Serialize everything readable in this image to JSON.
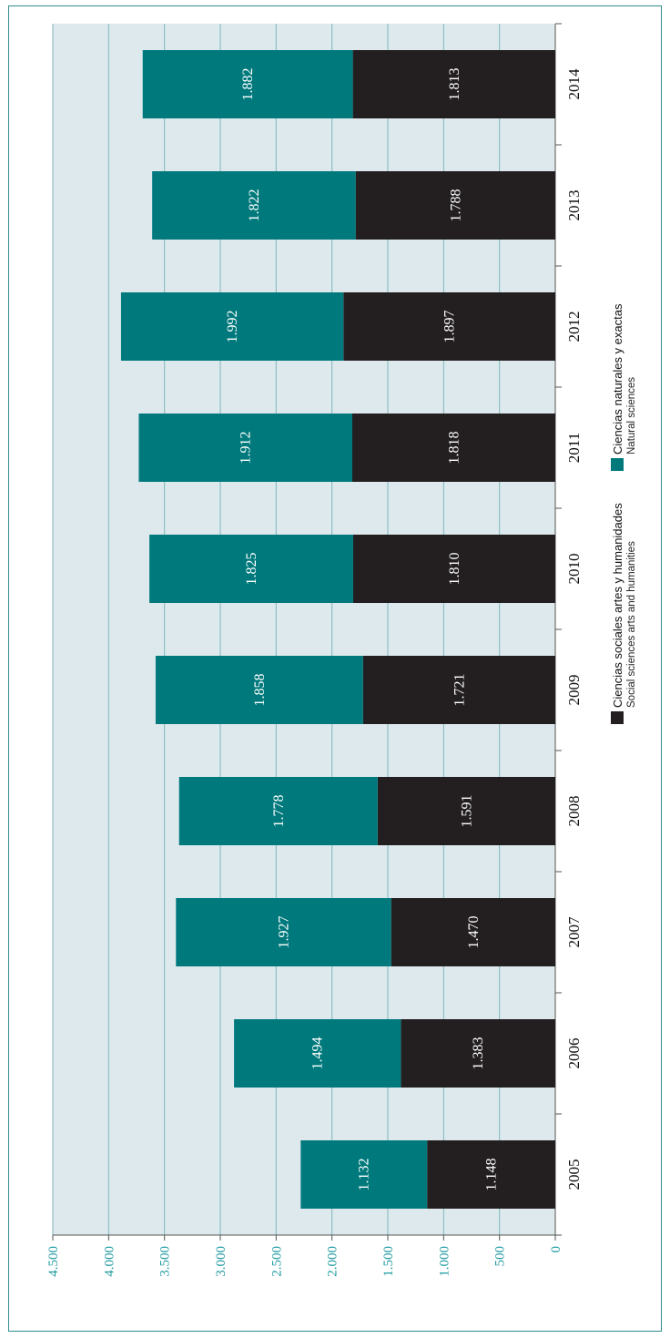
{
  "chart_data": {
    "type": "bar",
    "stacked": true,
    "orientation": "horizontal",
    "categories": [
      "2005",
      "2006",
      "2007",
      "2008",
      "2009",
      "2010",
      "2011",
      "2012",
      "2013",
      "2014"
    ],
    "series": [
      {
        "name": "Ciencias sociales artes y humanidades",
        "name_en": "Social sciences arts and humanities",
        "color": "#231f20",
        "values": [
          1148,
          1383,
          1470,
          1591,
          1721,
          1810,
          1818,
          1897,
          1788,
          1813
        ],
        "labels": [
          "1.148",
          "1.383",
          "1.470",
          "1.591",
          "1.721",
          "1.810",
          "1.818",
          "1.897",
          "1.788",
          "1.813"
        ]
      },
      {
        "name": "Ciencias naturales y exactas",
        "name_en": "Natural sciences",
        "color": "#00797c",
        "values": [
          1132,
          1494,
          1927,
          1778,
          1858,
          1825,
          1912,
          1992,
          1822,
          1882
        ],
        "labels": [
          "1.132",
          "1.494",
          "1.927",
          "1.778",
          "1.858",
          "1.825",
          "1.912",
          "1.992",
          "1.822",
          "1.882"
        ]
      }
    ],
    "ylim": [
      0,
      4500
    ],
    "ticks": [
      0,
      500,
      1000,
      1500,
      2000,
      2500,
      3000,
      3500,
      4000,
      4500
    ],
    "tick_labels": [
      "0",
      "500",
      "1.000",
      "1.500",
      "2.000",
      "2.500",
      "3.000",
      "3.500",
      "4.000",
      "4.500"
    ],
    "grid": true,
    "legend_position": "center",
    "title": "",
    "xlabel": "",
    "ylabel": ""
  },
  "colors": {
    "background": "#dde9ec",
    "grid": "#7fb8bd",
    "frame": "#2f8c8c",
    "tick_text": "#1f9aa0"
  }
}
